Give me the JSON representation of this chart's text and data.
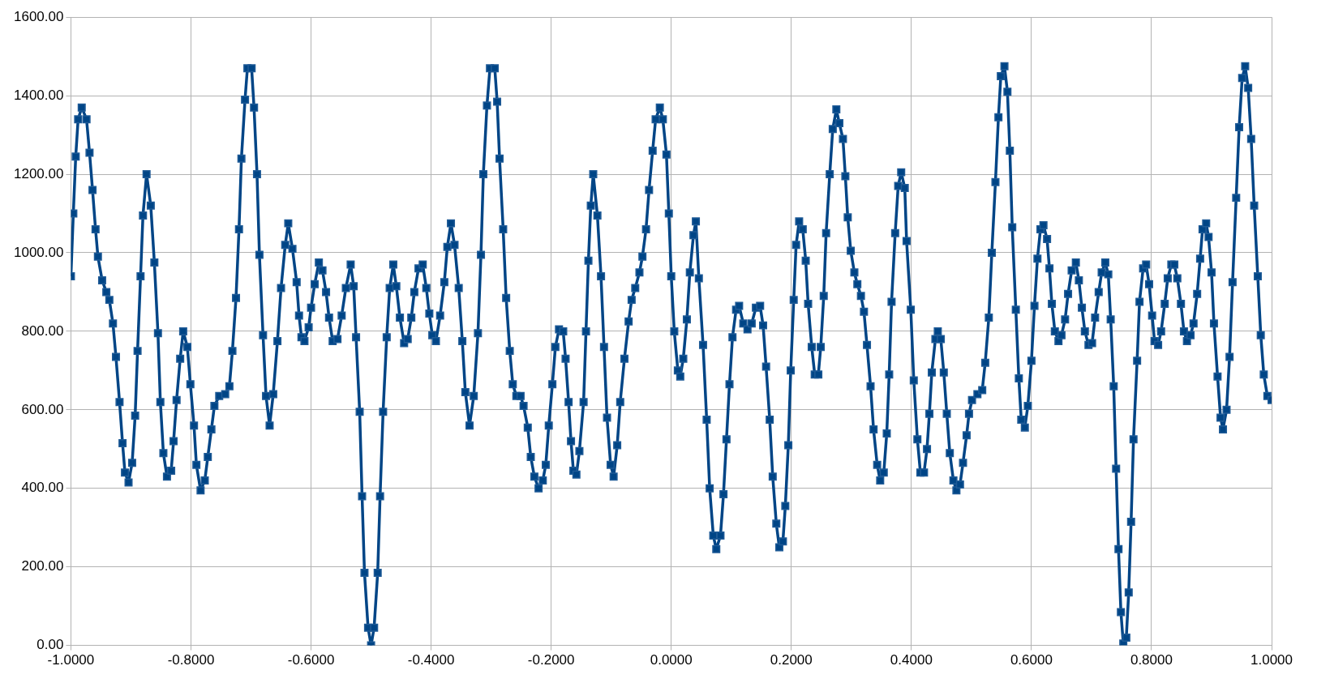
{
  "chart_data": {
    "type": "line",
    "marker": "square",
    "line_style": "solid",
    "grid": true,
    "legend": false,
    "xlim": [
      -1,
      1
    ],
    "ylim": [
      0,
      1600
    ],
    "xticks": [
      {
        "value": -1,
        "label": "-1.0000"
      },
      {
        "value": -0.8,
        "label": "-0.8000"
      },
      {
        "value": -0.6,
        "label": "-0.6000"
      },
      {
        "value": -0.4,
        "label": "-0.4000"
      },
      {
        "value": -0.2,
        "label": "-0.2000"
      },
      {
        "value": 0,
        "label": "0.0000"
      },
      {
        "value": 0.2,
        "label": "0.2000"
      },
      {
        "value": 0.4,
        "label": "0.4000"
      },
      {
        "value": 0.6,
        "label": "0.6000"
      },
      {
        "value": 0.8,
        "label": "0.8000"
      },
      {
        "value": 1,
        "label": "1.0000"
      }
    ],
    "yticks": [
      {
        "value": 0,
        "label": "0.00"
      },
      {
        "value": 200,
        "label": "200.00"
      },
      {
        "value": 400,
        "label": "400.00"
      },
      {
        "value": 600,
        "label": "600.00"
      },
      {
        "value": 800,
        "label": "800.00"
      },
      {
        "value": 1000,
        "label": "1000.00"
      },
      {
        "value": 1200,
        "label": "1200.00"
      },
      {
        "value": 1400,
        "label": "1400.00"
      },
      {
        "value": 1600,
        "label": "1600.00"
      }
    ],
    "x": [
      -1.0,
      -0.996,
      -0.992,
      -0.988,
      -0.982,
      -0.974,
      -0.969,
      -0.964,
      -0.959,
      -0.955,
      -0.948,
      -0.941,
      -0.936,
      -0.93,
      -0.925,
      -0.919,
      -0.914,
      -0.91,
      -0.904,
      -0.898,
      -0.893,
      -0.889,
      -0.884,
      -0.88,
      -0.874,
      -0.867,
      -0.861,
      -0.855,
      -0.851,
      -0.846,
      -0.84,
      -0.833,
      -0.829,
      -0.824,
      -0.818,
      -0.813,
      -0.806,
      -0.801,
      -0.795,
      -0.791,
      -0.784,
      -0.777,
      -0.772,
      -0.766,
      -0.761,
      -0.753,
      -0.743,
      -0.736,
      -0.731,
      -0.725,
      -0.72,
      -0.716,
      -0.71,
      -0.706,
      -0.699,
      -0.695,
      -0.69,
      -0.686,
      -0.68,
      -0.675,
      -0.669,
      -0.663,
      -0.656,
      -0.65,
      -0.643,
      -0.638,
      -0.631,
      -0.624,
      -0.62,
      -0.616,
      -0.611,
      -0.604,
      -0.6,
      -0.594,
      -0.587,
      -0.581,
      -0.575,
      -0.57,
      -0.564,
      -0.556,
      -0.549,
      -0.542,
      -0.534,
      -0.529,
      -0.525,
      -0.519,
      -0.515,
      -0.511,
      -0.505,
      -0.5,
      -0.495,
      -0.489,
      -0.485,
      -0.48,
      -0.474,
      -0.469,
      -0.463,
      -0.458,
      -0.452,
      -0.445,
      -0.439,
      -0.433,
      -0.428,
      -0.421,
      -0.414,
      -0.408,
      -0.403,
      -0.398,
      -0.392,
      -0.385,
      -0.378,
      -0.373,
      -0.367,
      -0.361,
      -0.354,
      -0.348,
      -0.343,
      -0.336,
      -0.329,
      -0.322,
      -0.317,
      -0.313,
      -0.307,
      -0.302,
      -0.294,
      -0.29,
      -0.286,
      -0.28,
      -0.275,
      -0.269,
      -0.264,
      -0.258,
      -0.251,
      -0.246,
      -0.239,
      -0.234,
      -0.228,
      -0.221,
      -0.214,
      -0.209,
      -0.204,
      -0.198,
      -0.193,
      -0.187,
      -0.18,
      -0.176,
      -0.171,
      -0.167,
      -0.163,
      -0.158,
      -0.153,
      -0.146,
      -0.142,
      -0.138,
      -0.134,
      -0.13,
      -0.123,
      -0.117,
      -0.112,
      -0.107,
      -0.101,
      -0.096,
      -0.09,
      -0.085,
      -0.078,
      -0.071,
      -0.066,
      -0.06,
      -0.053,
      -0.048,
      -0.042,
      -0.037,
      -0.031,
      -0.026,
      -0.019,
      -0.014,
      -0.008,
      -0.004,
      0.0,
      0.005,
      0.011,
      0.015,
      0.02,
      0.026,
      0.031,
      0.037,
      0.041,
      0.046,
      0.053,
      0.059,
      0.064,
      0.07,
      0.075,
      0.082,
      0.087,
      0.092,
      0.097,
      0.102,
      0.108,
      0.113,
      0.12,
      0.127,
      0.134,
      0.141,
      0.148,
      0.153,
      0.158,
      0.164,
      0.169,
      0.175,
      0.18,
      0.186,
      0.19,
      0.195,
      0.199,
      0.204,
      0.208,
      0.213,
      0.219,
      0.224,
      0.228,
      0.234,
      0.239,
      0.245,
      0.249,
      0.254,
      0.258,
      0.264,
      0.269,
      0.275,
      0.28,
      0.286,
      0.29,
      0.294,
      0.299,
      0.305,
      0.31,
      0.316,
      0.321,
      0.326,
      0.332,
      0.337,
      0.343,
      0.348,
      0.354,
      0.359,
      0.363,
      0.367,
      0.373,
      0.378,
      0.383,
      0.389,
      0.392,
      0.399,
      0.404,
      0.41,
      0.415,
      0.421,
      0.426,
      0.43,
      0.434,
      0.44,
      0.444,
      0.449,
      0.454,
      0.459,
      0.464,
      0.47,
      0.475,
      0.481,
      0.486,
      0.492,
      0.496,
      0.501,
      0.51,
      0.518,
      0.523,
      0.529,
      0.534,
      0.54,
      0.545,
      0.549,
      0.555,
      0.56,
      0.564,
      0.568,
      0.574,
      0.579,
      0.583,
      0.589,
      0.594,
      0.6,
      0.605,
      0.61,
      0.615,
      0.62,
      0.626,
      0.63,
      0.634,
      0.639,
      0.645,
      0.65,
      0.656,
      0.661,
      0.667,
      0.674,
      0.679,
      0.684,
      0.689,
      0.695,
      0.701,
      0.706,
      0.712,
      0.717,
      0.723,
      0.728,
      0.732,
      0.737,
      0.741,
      0.745,
      0.749,
      0.753,
      0.758,
      0.762,
      0.766,
      0.77,
      0.776,
      0.78,
      0.786,
      0.791,
      0.796,
      0.801,
      0.805,
      0.811,
      0.816,
      0.822,
      0.827,
      0.833,
      0.838,
      0.843,
      0.849,
      0.854,
      0.859,
      0.865,
      0.87,
      0.876,
      0.881,
      0.885,
      0.891,
      0.895,
      0.9,
      0.904,
      0.91,
      0.915,
      0.919,
      0.925,
      0.93,
      0.935,
      0.941,
      0.946,
      0.951,
      0.956,
      0.961,
      0.966,
      0.971,
      0.977,
      0.982,
      0.987,
      0.993,
      1.0
    ],
    "series": [
      {
        "color": "#004586",
        "values": [
          940,
          1100,
          1245,
          1340,
          1370,
          1340,
          1255,
          1160,
          1060,
          990,
          930,
          900,
          880,
          820,
          735,
          620,
          515,
          440,
          415,
          465,
          585,
          750,
          940,
          1095,
          1200,
          1120,
          975,
          795,
          620,
          490,
          430,
          445,
          520,
          625,
          730,
          800,
          760,
          665,
          560,
          460,
          395,
          420,
          480,
          550,
          610,
          635,
          640,
          660,
          750,
          885,
          1060,
          1240,
          1390,
          1470,
          1470,
          1370,
          1200,
          995,
          790,
          635,
          560,
          640,
          775,
          910,
          1020,
          1075,
          1010,
          925,
          840,
          785,
          775,
          810,
          860,
          920,
          975,
          955,
          900,
          835,
          775,
          780,
          840,
          910,
          970,
          915,
          785,
          595,
          380,
          185,
          45,
          0,
          45,
          185,
          380,
          595,
          785,
          910,
          970,
          915,
          835,
          770,
          780,
          835,
          900,
          960,
          970,
          910,
          845,
          790,
          775,
          840,
          925,
          1015,
          1075,
          1020,
          910,
          775,
          645,
          560,
          635,
          795,
          995,
          1200,
          1375,
          1470,
          1470,
          1385,
          1240,
          1060,
          885,
          750,
          665,
          635,
          635,
          610,
          555,
          480,
          430,
          400,
          420,
          460,
          560,
          665,
          760,
          805,
          800,
          730,
          620,
          520,
          445,
          435,
          495,
          620,
          800,
          980,
          1120,
          1200,
          1095,
          940,
          760,
          580,
          460,
          430,
          510,
          620,
          730,
          825,
          880,
          910,
          950,
          990,
          1060,
          1160,
          1260,
          1340,
          1370,
          1340,
          1250,
          1100,
          940,
          800,
          700,
          685,
          730,
          830,
          950,
          1045,
          1080,
          935,
          765,
          575,
          400,
          280,
          245,
          280,
          385,
          525,
          665,
          785,
          855,
          865,
          820,
          805,
          820,
          860,
          865,
          815,
          710,
          575,
          430,
          310,
          250,
          265,
          355,
          510,
          700,
          880,
          1020,
          1080,
          1060,
          980,
          870,
          760,
          690,
          690,
          760,
          890,
          1050,
          1200,
          1315,
          1365,
          1330,
          1290,
          1195,
          1090,
          1005,
          950,
          920,
          890,
          850,
          765,
          660,
          550,
          460,
          420,
          440,
          540,
          690,
          875,
          1050,
          1170,
          1205,
          1165,
          1030,
          855,
          675,
          525,
          440,
          440,
          500,
          590,
          695,
          780,
          800,
          780,
          695,
          590,
          490,
          420,
          395,
          410,
          465,
          535,
          590,
          625,
          640,
          650,
          720,
          835,
          1000,
          1180,
          1345,
          1450,
          1475,
          1410,
          1260,
          1065,
          855,
          680,
          575,
          555,
          610,
          725,
          865,
          985,
          1060,
          1070,
          1035,
          960,
          870,
          800,
          775,
          790,
          830,
          895,
          955,
          975,
          930,
          860,
          800,
          765,
          770,
          835,
          900,
          950,
          975,
          945,
          830,
          660,
          450,
          245,
          85,
          5,
          20,
          135,
          315,
          525,
          725,
          875,
          960,
          970,
          920,
          840,
          775,
          765,
          800,
          870,
          935,
          970,
          970,
          935,
          870,
          800,
          775,
          790,
          820,
          895,
          985,
          1060,
          1075,
          1040,
          950,
          820,
          685,
          580,
          550,
          600,
          735,
          925,
          1140,
          1320,
          1445,
          1475,
          1420,
          1290,
          1120,
          940,
          790,
          690,
          635,
          625
        ]
      }
    ]
  }
}
